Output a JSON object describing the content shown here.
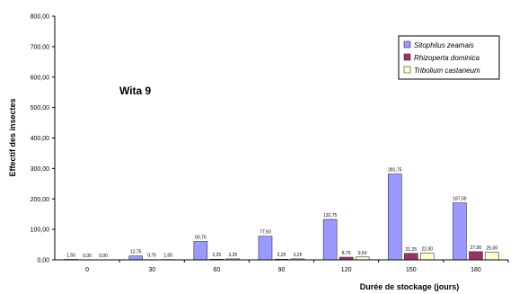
{
  "chart_data": {
    "type": "bar",
    "title": "Wita 9",
    "xlabel": "Durée de stockage (jours)",
    "ylabel": "Effectif des insectes",
    "ylim": [
      0,
      800
    ],
    "y_ticks": [
      "0,00",
      "100,00",
      "200,00",
      "300,00",
      "400,00",
      "500,00",
      "600,00",
      "700,00",
      "800,00"
    ],
    "grid": false,
    "legend_position": "top-right",
    "categories": [
      "0",
      "30",
      "60",
      "90",
      "120",
      "150",
      "180"
    ],
    "series": [
      {
        "name": "Sitophilus zeamais",
        "color": "#9999ff",
        "values": [
          1.5,
          12.75,
          60.75,
          77.5,
          132.75,
          281.75,
          187.0
        ],
        "labels": [
          "1,50",
          "12,75",
          "60,75",
          "77,50",
          "132,75",
          "281,75",
          "187,00"
        ]
      },
      {
        "name": "Rhizoperta dominica",
        "color": "#993366",
        "values": [
          0,
          0.75,
          2.25,
          2.25,
          8.75,
          21.25,
          27.0
        ],
        "labels": [
          "0,00",
          "0,75",
          "2,25",
          "2,25",
          "8,75",
          "21,25",
          "27,00"
        ]
      },
      {
        "name": "Tribolium castaneum",
        "color": "#ffffcc",
        "values": [
          0,
          1.0,
          3.25,
          3.25,
          9.5,
          22.0,
          25.0
        ],
        "labels": [
          "0,00",
          "1,00",
          "3,25",
          "3,25",
          "9,50",
          "22,00",
          "25,00"
        ]
      }
    ]
  }
}
